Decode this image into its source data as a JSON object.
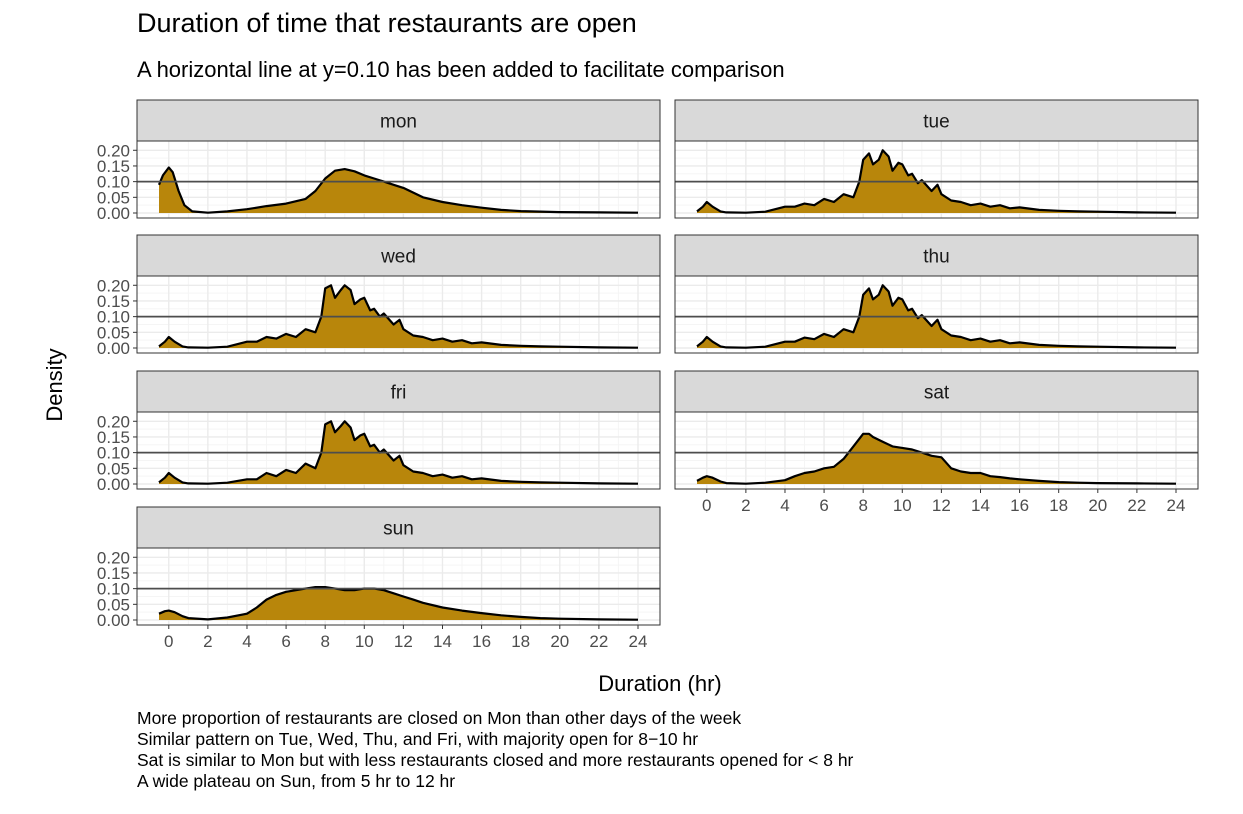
{
  "title": "Duration of time that restaurants are open",
  "subtitle": "A horizontal line at y=0.10 has been added to facilitate comparison",
  "caption": [
    "More proportion of restaurants are closed on Mon than other days of the week",
    "Similar pattern on Tue, Wed, Thu, and Fri, with majority open for 8−10 hr",
    "Sat is similar to Mon but with less restaurants closed and more restaurants opened for < 8 hr",
    "A wide plateau on Sun, from 5 hr to 12 hr"
  ],
  "colors": {
    "fill": "#B8860B",
    "line": "#000000",
    "strip": "#D9D9D9",
    "reference": "#4D4D4D",
    "grid_major": "#EBEBEB",
    "grid_minor": "#F5F5F5"
  },
  "chart_data": {
    "type": "area",
    "xlabel": "Duration (hr)",
    "ylabel": "Density",
    "xlim": [
      -0.5,
      24
    ],
    "ylim": [
      0,
      0.22
    ],
    "x_ticks": [
      "0",
      "2",
      "4",
      "6",
      "8",
      "10",
      "12",
      "14",
      "16",
      "18",
      "20",
      "22",
      "24"
    ],
    "y_ticks": [
      "0.00",
      "0.05",
      "0.10",
      "0.15",
      "0.20"
    ],
    "reference_line_y": 0.1,
    "grid": true,
    "panels": [
      {
        "name": "mon",
        "points": [
          [
            -0.5,
            0.09
          ],
          [
            -0.3,
            0.12
          ],
          [
            0,
            0.145
          ],
          [
            0.2,
            0.13
          ],
          [
            0.5,
            0.07
          ],
          [
            0.8,
            0.025
          ],
          [
            1.2,
            0.005
          ],
          [
            2,
            0.001
          ],
          [
            3,
            0.005
          ],
          [
            4,
            0.012
          ],
          [
            5,
            0.022
          ],
          [
            6,
            0.03
          ],
          [
            7,
            0.045
          ],
          [
            7.5,
            0.07
          ],
          [
            8,
            0.11
          ],
          [
            8.5,
            0.135
          ],
          [
            9,
            0.14
          ],
          [
            9.5,
            0.133
          ],
          [
            10,
            0.12
          ],
          [
            10.5,
            0.11
          ],
          [
            11,
            0.1
          ],
          [
            11.5,
            0.09
          ],
          [
            12,
            0.08
          ],
          [
            13,
            0.05
          ],
          [
            14,
            0.035
          ],
          [
            15,
            0.025
          ],
          [
            16,
            0.017
          ],
          [
            17,
            0.01
          ],
          [
            18,
            0.006
          ],
          [
            20,
            0.003
          ],
          [
            22,
            0.002
          ],
          [
            24,
            0.001
          ]
        ]
      },
      {
        "name": "tue",
        "points": [
          [
            -0.5,
            0.005
          ],
          [
            -0.2,
            0.02
          ],
          [
            0,
            0.035
          ],
          [
            0.3,
            0.02
          ],
          [
            0.7,
            0.005
          ],
          [
            1,
            0.002
          ],
          [
            2,
            0.001
          ],
          [
            3,
            0.004
          ],
          [
            4,
            0.02
          ],
          [
            4.5,
            0.02
          ],
          [
            5,
            0.03
          ],
          [
            5.5,
            0.025
          ],
          [
            6,
            0.045
          ],
          [
            6.5,
            0.035
          ],
          [
            7,
            0.06
          ],
          [
            7.5,
            0.05
          ],
          [
            7.8,
            0.1
          ],
          [
            8,
            0.17
          ],
          [
            8.3,
            0.19
          ],
          [
            8.5,
            0.155
          ],
          [
            8.8,
            0.17
          ],
          [
            9,
            0.2
          ],
          [
            9.3,
            0.18
          ],
          [
            9.5,
            0.135
          ],
          [
            9.8,
            0.16
          ],
          [
            10,
            0.155
          ],
          [
            10.3,
            0.12
          ],
          [
            10.5,
            0.125
          ],
          [
            10.8,
            0.095
          ],
          [
            11,
            0.105
          ],
          [
            11.5,
            0.07
          ],
          [
            11.8,
            0.09
          ],
          [
            12,
            0.06
          ],
          [
            12.5,
            0.04
          ],
          [
            13,
            0.035
          ],
          [
            13.5,
            0.025
          ],
          [
            14,
            0.03
          ],
          [
            14.5,
            0.02
          ],
          [
            15,
            0.025
          ],
          [
            15.5,
            0.015
          ],
          [
            16,
            0.018
          ],
          [
            17,
            0.01
          ],
          [
            18,
            0.007
          ],
          [
            19,
            0.005
          ],
          [
            20,
            0.004
          ],
          [
            22,
            0.002
          ],
          [
            24,
            0.001
          ]
        ]
      },
      {
        "name": "wed",
        "points": [
          [
            -0.5,
            0.005
          ],
          [
            -0.2,
            0.02
          ],
          [
            0,
            0.035
          ],
          [
            0.3,
            0.02
          ],
          [
            0.7,
            0.005
          ],
          [
            1,
            0.002
          ],
          [
            2,
            0.001
          ],
          [
            3,
            0.004
          ],
          [
            4,
            0.02
          ],
          [
            4.5,
            0.02
          ],
          [
            5,
            0.035
          ],
          [
            5.5,
            0.03
          ],
          [
            6,
            0.045
          ],
          [
            6.5,
            0.035
          ],
          [
            7,
            0.06
          ],
          [
            7.5,
            0.05
          ],
          [
            7.8,
            0.1
          ],
          [
            8,
            0.19
          ],
          [
            8.3,
            0.2
          ],
          [
            8.5,
            0.16
          ],
          [
            8.8,
            0.185
          ],
          [
            9,
            0.2
          ],
          [
            9.3,
            0.185
          ],
          [
            9.5,
            0.14
          ],
          [
            9.8,
            0.155
          ],
          [
            10,
            0.16
          ],
          [
            10.3,
            0.12
          ],
          [
            10.5,
            0.125
          ],
          [
            10.8,
            0.1
          ],
          [
            11,
            0.11
          ],
          [
            11.5,
            0.075
          ],
          [
            11.8,
            0.09
          ],
          [
            12,
            0.06
          ],
          [
            12.5,
            0.04
          ],
          [
            13,
            0.035
          ],
          [
            13.5,
            0.025
          ],
          [
            14,
            0.03
          ],
          [
            14.5,
            0.02
          ],
          [
            15,
            0.025
          ],
          [
            15.5,
            0.015
          ],
          [
            16,
            0.018
          ],
          [
            17,
            0.01
          ],
          [
            18,
            0.007
          ],
          [
            19,
            0.005
          ],
          [
            20,
            0.004
          ],
          [
            22,
            0.002
          ],
          [
            24,
            0.001
          ]
        ]
      },
      {
        "name": "thu",
        "points": [
          [
            -0.5,
            0.005
          ],
          [
            -0.2,
            0.02
          ],
          [
            0,
            0.035
          ],
          [
            0.3,
            0.02
          ],
          [
            0.7,
            0.005
          ],
          [
            1,
            0.002
          ],
          [
            2,
            0.001
          ],
          [
            3,
            0.004
          ],
          [
            4,
            0.02
          ],
          [
            4.5,
            0.02
          ],
          [
            5,
            0.033
          ],
          [
            5.5,
            0.028
          ],
          [
            6,
            0.045
          ],
          [
            6.5,
            0.035
          ],
          [
            7,
            0.06
          ],
          [
            7.5,
            0.05
          ],
          [
            7.8,
            0.1
          ],
          [
            8,
            0.17
          ],
          [
            8.3,
            0.19
          ],
          [
            8.5,
            0.155
          ],
          [
            8.8,
            0.17
          ],
          [
            9,
            0.2
          ],
          [
            9.3,
            0.18
          ],
          [
            9.5,
            0.135
          ],
          [
            9.8,
            0.16
          ],
          [
            10,
            0.155
          ],
          [
            10.3,
            0.12
          ],
          [
            10.5,
            0.125
          ],
          [
            10.8,
            0.095
          ],
          [
            11,
            0.105
          ],
          [
            11.5,
            0.07
          ],
          [
            11.8,
            0.09
          ],
          [
            12,
            0.06
          ],
          [
            12.5,
            0.04
          ],
          [
            13,
            0.035
          ],
          [
            13.5,
            0.025
          ],
          [
            14,
            0.03
          ],
          [
            14.5,
            0.02
          ],
          [
            15,
            0.025
          ],
          [
            15.5,
            0.015
          ],
          [
            16,
            0.018
          ],
          [
            17,
            0.01
          ],
          [
            18,
            0.007
          ],
          [
            19,
            0.005
          ],
          [
            20,
            0.004
          ],
          [
            22,
            0.002
          ],
          [
            24,
            0.001
          ]
        ]
      },
      {
        "name": "fri",
        "points": [
          [
            -0.5,
            0.005
          ],
          [
            -0.2,
            0.02
          ],
          [
            0,
            0.035
          ],
          [
            0.3,
            0.02
          ],
          [
            0.7,
            0.005
          ],
          [
            1,
            0.002
          ],
          [
            2,
            0.001
          ],
          [
            3,
            0.004
          ],
          [
            4,
            0.015
          ],
          [
            4.5,
            0.015
          ],
          [
            5,
            0.035
          ],
          [
            5.5,
            0.025
          ],
          [
            6,
            0.045
          ],
          [
            6.5,
            0.035
          ],
          [
            7,
            0.065
          ],
          [
            7.5,
            0.05
          ],
          [
            7.8,
            0.1
          ],
          [
            8,
            0.19
          ],
          [
            8.3,
            0.2
          ],
          [
            8.5,
            0.165
          ],
          [
            8.8,
            0.185
          ],
          [
            9,
            0.2
          ],
          [
            9.3,
            0.18
          ],
          [
            9.5,
            0.14
          ],
          [
            9.8,
            0.155
          ],
          [
            10,
            0.16
          ],
          [
            10.3,
            0.12
          ],
          [
            10.5,
            0.125
          ],
          [
            10.8,
            0.1
          ],
          [
            11,
            0.11
          ],
          [
            11.5,
            0.075
          ],
          [
            11.8,
            0.09
          ],
          [
            12,
            0.06
          ],
          [
            12.5,
            0.04
          ],
          [
            13,
            0.035
          ],
          [
            13.5,
            0.025
          ],
          [
            14,
            0.03
          ],
          [
            14.5,
            0.02
          ],
          [
            15,
            0.025
          ],
          [
            15.5,
            0.015
          ],
          [
            16,
            0.018
          ],
          [
            17,
            0.01
          ],
          [
            18,
            0.007
          ],
          [
            19,
            0.005
          ],
          [
            20,
            0.004
          ],
          [
            22,
            0.002
          ],
          [
            24,
            0.001
          ]
        ]
      },
      {
        "name": "sat",
        "points": [
          [
            -0.5,
            0.01
          ],
          [
            -0.2,
            0.02
          ],
          [
            0,
            0.025
          ],
          [
            0.3,
            0.02
          ],
          [
            0.7,
            0.008
          ],
          [
            1,
            0.003
          ],
          [
            2,
            0.001
          ],
          [
            3,
            0.004
          ],
          [
            4,
            0.012
          ],
          [
            4.5,
            0.025
          ],
          [
            5,
            0.035
          ],
          [
            5.5,
            0.04
          ],
          [
            6,
            0.05
          ],
          [
            6.5,
            0.055
          ],
          [
            7,
            0.08
          ],
          [
            7.5,
            0.12
          ],
          [
            8,
            0.16
          ],
          [
            8.3,
            0.16
          ],
          [
            8.5,
            0.15
          ],
          [
            9,
            0.135
          ],
          [
            9.5,
            0.12
          ],
          [
            10,
            0.115
          ],
          [
            10.5,
            0.11
          ],
          [
            11,
            0.1
          ],
          [
            11.5,
            0.09
          ],
          [
            12,
            0.085
          ],
          [
            12.5,
            0.05
          ],
          [
            13,
            0.04
          ],
          [
            13.5,
            0.035
          ],
          [
            14,
            0.035
          ],
          [
            14.5,
            0.025
          ],
          [
            15,
            0.022
          ],
          [
            15.5,
            0.018
          ],
          [
            16,
            0.015
          ],
          [
            17,
            0.01
          ],
          [
            18,
            0.006
          ],
          [
            19,
            0.004
          ],
          [
            20,
            0.003
          ],
          [
            22,
            0.002
          ],
          [
            24,
            0.001
          ]
        ]
      },
      {
        "name": "sun",
        "points": [
          [
            -0.5,
            0.02
          ],
          [
            -0.2,
            0.028
          ],
          [
            0,
            0.03
          ],
          [
            0.3,
            0.025
          ],
          [
            0.7,
            0.012
          ],
          [
            1,
            0.006
          ],
          [
            2,
            0.002
          ],
          [
            3,
            0.008
          ],
          [
            4,
            0.02
          ],
          [
            4.5,
            0.04
          ],
          [
            5,
            0.065
          ],
          [
            5.5,
            0.08
          ],
          [
            6,
            0.09
          ],
          [
            6.5,
            0.095
          ],
          [
            7,
            0.1
          ],
          [
            7.5,
            0.105
          ],
          [
            8,
            0.105
          ],
          [
            8.5,
            0.1
          ],
          [
            9,
            0.095
          ],
          [
            9.5,
            0.095
          ],
          [
            10,
            0.1
          ],
          [
            10.5,
            0.1
          ],
          [
            11,
            0.095
          ],
          [
            11.5,
            0.085
          ],
          [
            12,
            0.075
          ],
          [
            12.5,
            0.065
          ],
          [
            13,
            0.055
          ],
          [
            14,
            0.04
          ],
          [
            15,
            0.03
          ],
          [
            16,
            0.022
          ],
          [
            17,
            0.015
          ],
          [
            18,
            0.01
          ],
          [
            19,
            0.006
          ],
          [
            20,
            0.004
          ],
          [
            22,
            0.002
          ],
          [
            24,
            0.001
          ]
        ]
      }
    ]
  }
}
